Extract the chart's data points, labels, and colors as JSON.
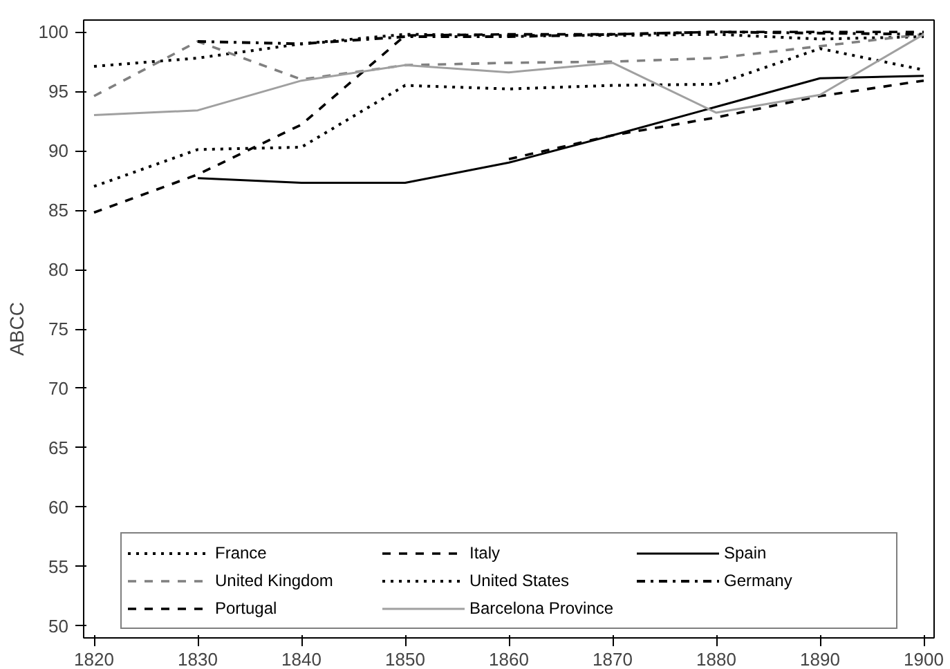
{
  "chart_data": {
    "type": "line",
    "ylabel": "ABCC",
    "x": [
      1820,
      1830,
      1840,
      1850,
      1860,
      1870,
      1880,
      1890,
      1900
    ],
    "xlim": [
      1819,
      1901
    ],
    "xticks": [
      1820,
      1830,
      1840,
      1850,
      1860,
      1870,
      1880,
      1890,
      1900
    ],
    "ylim": [
      49,
      101
    ],
    "yticks": [
      50,
      55,
      60,
      65,
      70,
      75,
      80,
      85,
      90,
      95,
      100
    ],
    "grid": false,
    "legend": "bottom",
    "marker": "none",
    "series": [
      {
        "name": "France",
        "color": "#000000",
        "line_style": "dotted",
        "values": [
          97.1,
          97.8,
          99.0,
          99.8,
          99.7,
          99.7,
          99.8,
          99.4,
          99.6
        ]
      },
      {
        "name": "Italy",
        "color": "#000000",
        "line_style": "dashed",
        "values": [
          84.8,
          88.0,
          92.2,
          99.7,
          99.8,
          99.8,
          100,
          100,
          100
        ]
      },
      {
        "name": "Spain",
        "color": "#000000",
        "line_style": "solid",
        "values": [
          null,
          87.7,
          87.3,
          87.3,
          89.0,
          91.3,
          93.7,
          96.1,
          96.3
        ]
      },
      {
        "name": "United Kingdom",
        "color": "#808080",
        "line_style": "dashed",
        "values": [
          94.6,
          99.2,
          96.0,
          97.2,
          97.4,
          97.5,
          97.8,
          98.8,
          99.8
        ]
      },
      {
        "name": "United States",
        "color": "#000000",
        "line_style": "dotted",
        "values": [
          87.0,
          90.1,
          90.3,
          95.5,
          95.2,
          95.5,
          95.6,
          98.6,
          96.8
        ]
      },
      {
        "name": "Germany",
        "color": "#000000",
        "line_style": "dashdot",
        "values": [
          null,
          99.2,
          99.0,
          99.6,
          99.6,
          99.8,
          100,
          99.9,
          99.8
        ]
      },
      {
        "name": "Portugal",
        "color": "#000000",
        "line_style": "dashed",
        "values": [
          null,
          null,
          null,
          null,
          89.3,
          91.3,
          92.8,
          94.6,
          95.9
        ]
      },
      {
        "name": "Barcelona Province",
        "color": "#a0a0a0",
        "line_style": "solid",
        "values": [
          93.0,
          93.4,
          95.9,
          97.2,
          96.6,
          97.4,
          93.2,
          94.7,
          99.8
        ]
      }
    ]
  }
}
